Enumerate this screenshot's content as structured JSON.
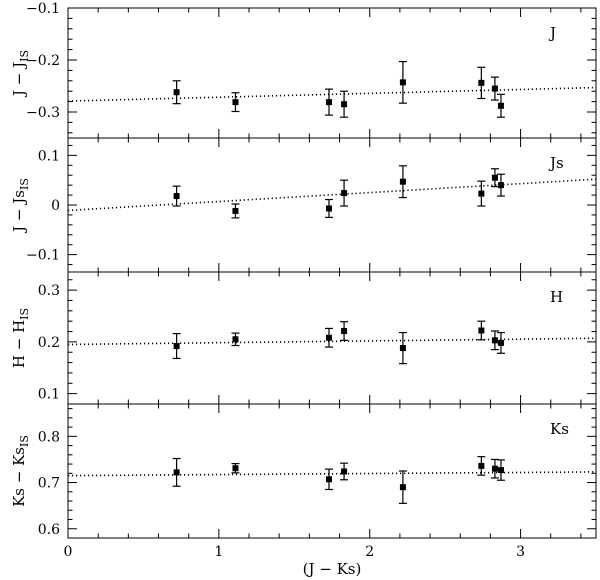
{
  "chart_data": {
    "type": "scatter",
    "xlabel": "(J − Ks)",
    "xlim": [
      0,
      3.5
    ],
    "x_ticks": [
      0,
      1,
      2,
      3
    ],
    "x_tick_labels": [
      "0",
      "1",
      "2",
      "3"
    ],
    "panels": [
      {
        "band": "J",
        "ylabel_main": "J − J",
        "ylabel_sub": "IS",
        "ylim": [
          -0.35,
          -0.1
        ],
        "inverted": true,
        "y_ticks": [
          -0.1,
          -0.2,
          -0.3
        ],
        "y_tick_labels": [
          "−0.1",
          "−0.2",
          "−0.3"
        ],
        "fit": {
          "x": [
            0,
            3.5
          ],
          "y": [
            -0.279,
            -0.253
          ]
        },
        "points": [
          {
            "x": 0.72,
            "y": -0.262,
            "err": 0.022
          },
          {
            "x": 1.11,
            "y": -0.281,
            "err": 0.018
          },
          {
            "x": 1.73,
            "y": -0.281,
            "err": 0.025
          },
          {
            "x": 1.83,
            "y": -0.285,
            "err": 0.025
          },
          {
            "x": 2.22,
            "y": -0.243,
            "err": 0.04
          },
          {
            "x": 2.74,
            "y": -0.244,
            "err": 0.03
          },
          {
            "x": 2.83,
            "y": -0.255,
            "err": 0.022
          },
          {
            "x": 2.87,
            "y": -0.288,
            "err": 0.022
          }
        ]
      },
      {
        "band": "Js",
        "ylabel_main": "J − Js",
        "ylabel_sub": "IS",
        "ylim": [
          -0.135,
          0.135
        ],
        "inverted": false,
        "y_ticks": [
          0.1,
          0,
          -0.1
        ],
        "y_tick_labels": [
          "0.1",
          "0",
          "−0.1"
        ],
        "fit": {
          "x": [
            0,
            3.5
          ],
          "y": [
            -0.011,
            0.052
          ]
        },
        "points": [
          {
            "x": 0.72,
            "y": 0.018,
            "err": 0.02
          },
          {
            "x": 1.11,
            "y": -0.012,
            "err": 0.014
          },
          {
            "x": 1.73,
            "y": -0.007,
            "err": 0.018
          },
          {
            "x": 1.83,
            "y": 0.024,
            "err": 0.026
          },
          {
            "x": 2.22,
            "y": 0.047,
            "err": 0.032
          },
          {
            "x": 2.74,
            "y": 0.023,
            "err": 0.025
          },
          {
            "x": 2.83,
            "y": 0.055,
            "err": 0.018
          },
          {
            "x": 2.87,
            "y": 0.04,
            "err": 0.022
          }
        ]
      },
      {
        "band": "H",
        "ylabel_main": "H − H",
        "ylabel_sub": "IS",
        "ylim": [
          0.08,
          0.335
        ],
        "inverted": false,
        "y_ticks": [
          0.3,
          0.2,
          0.1
        ],
        "y_tick_labels": [
          "0.3",
          "0.2",
          "0.1"
        ],
        "fit": {
          "x": [
            0,
            3.5
          ],
          "y": [
            0.195,
            0.207
          ]
        },
        "points": [
          {
            "x": 0.72,
            "y": 0.192,
            "err": 0.024
          },
          {
            "x": 1.11,
            "y": 0.205,
            "err": 0.012
          },
          {
            "x": 1.73,
            "y": 0.208,
            "err": 0.018
          },
          {
            "x": 1.83,
            "y": 0.221,
            "err": 0.018
          },
          {
            "x": 2.22,
            "y": 0.188,
            "err": 0.03
          },
          {
            "x": 2.74,
            "y": 0.222,
            "err": 0.018
          },
          {
            "x": 2.83,
            "y": 0.203,
            "err": 0.018
          },
          {
            "x": 2.87,
            "y": 0.198,
            "err": 0.02
          }
        ]
      },
      {
        "band": "Ks",
        "ylabel_main": "Ks − Ks",
        "ylabel_sub": "IS",
        "ylim": [
          0.58,
          0.87
        ],
        "inverted": false,
        "y_ticks": [
          0.8,
          0.7,
          0.6
        ],
        "y_tick_labels": [
          "0.8",
          "0.7",
          "0.6"
        ],
        "fit": {
          "x": [
            0,
            3.5
          ],
          "y": [
            0.715,
            0.723
          ]
        },
        "points": [
          {
            "x": 0.72,
            "y": 0.722,
            "err": 0.03
          },
          {
            "x": 1.11,
            "y": 0.731,
            "err": 0.01
          },
          {
            "x": 1.73,
            "y": 0.707,
            "err": 0.022
          },
          {
            "x": 1.83,
            "y": 0.724,
            "err": 0.018
          },
          {
            "x": 2.22,
            "y": 0.69,
            "err": 0.035
          },
          {
            "x": 2.74,
            "y": 0.736,
            "err": 0.02
          },
          {
            "x": 2.83,
            "y": 0.73,
            "err": 0.02
          },
          {
            "x": 2.87,
            "y": 0.727,
            "err": 0.022
          }
        ]
      }
    ]
  }
}
